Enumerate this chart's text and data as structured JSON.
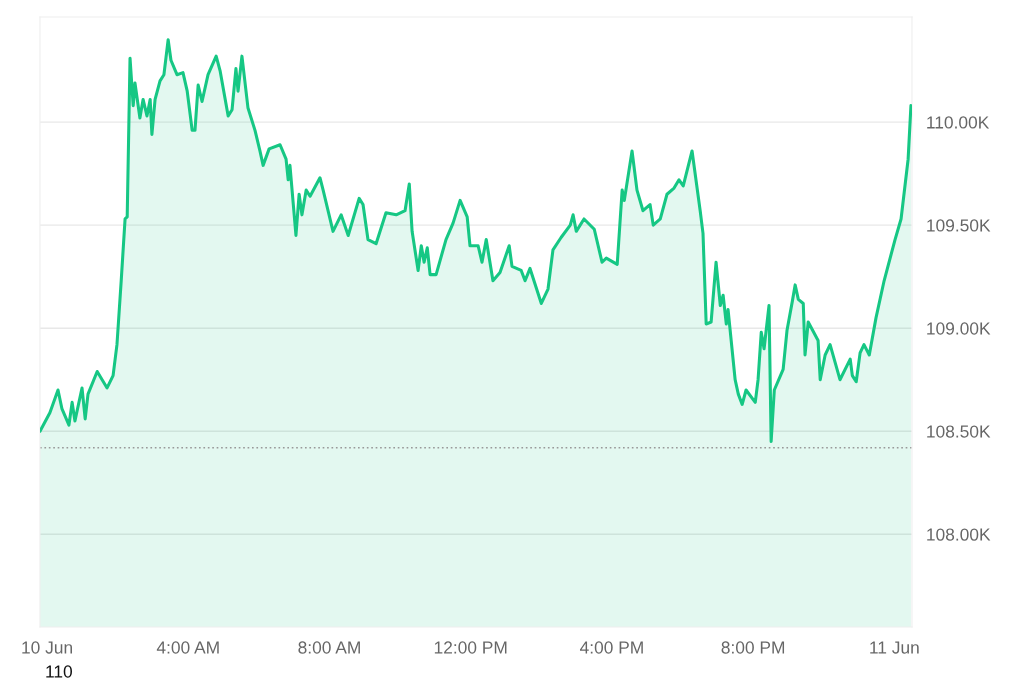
{
  "chart_data": {
    "type": "area",
    "x": [
      -0.2,
      0.08,
      0.31,
      0.42,
      0.62,
      0.71,
      0.79,
      0.99,
      1.08,
      1.16,
      1.42,
      1.7,
      1.87,
      1.98,
      2.1,
      2.21,
      2.27,
      2.35,
      2.44,
      2.49,
      2.63,
      2.72,
      2.83,
      2.92,
      2.97,
      3.06,
      3.2,
      3.31,
      3.43,
      3.51,
      3.68,
      3.85,
      3.97,
      4.11,
      4.19,
      4.28,
      4.39,
      4.56,
      4.79,
      4.9,
      5.13,
      5.24,
      5.35,
      5.41,
      5.52,
      5.69,
      5.89,
      6.03,
      6.12,
      6.29,
      6.6,
      6.77,
      6.83,
      6.88,
      7.05,
      7.14,
      7.22,
      7.34,
      7.45,
      7.73,
      7.82,
      8.1,
      8.33,
      8.53,
      8.84,
      8.95,
      9.09,
      9.32,
      9.6,
      9.89,
      10.14,
      10.26,
      10.34,
      10.51,
      10.6,
      10.68,
      10.77,
      10.85,
      11.02,
      11.3,
      11.5,
      11.7,
      11.9,
      11.98,
      12.21,
      12.32,
      12.44,
      12.63,
      12.83,
      13.09,
      13.17,
      13.43,
      13.54,
      13.68,
      14.0,
      14.19,
      14.33,
      14.56,
      14.82,
      14.9,
      14.99,
      15.21,
      15.5,
      15.72,
      15.84,
      16.15,
      16.29,
      16.35,
      16.57,
      16.71,
      16.88,
      17.08,
      17.17,
      17.37,
      17.56,
      17.76,
      17.9,
      18.02,
      18.27,
      18.5,
      18.58,
      18.67,
      18.81,
      18.95,
      19.07,
      19.15,
      19.24,
      19.29,
      19.49,
      19.58,
      19.69,
      19.8,
      20.06,
      20.14,
      20.23,
      20.31,
      20.45,
      20.51,
      20.6,
      20.85,
      20.96,
      21.11,
      21.19,
      21.28,
      21.42,
      21.47,
      21.56,
      21.84,
      21.9,
      22.04,
      22.18,
      22.46,
      22.75,
      22.81,
      22.92,
      23.03,
      23.14,
      23.29,
      23.48,
      23.71,
      24.02,
      24.19,
      24.39,
      24.47
    ],
    "series": [
      {
        "color": "#16c784",
        "values": [
          108.5,
          108.59,
          108.7,
          108.61,
          108.53,
          108.64,
          108.55,
          108.71,
          108.56,
          108.68,
          108.79,
          108.71,
          108.77,
          108.92,
          109.23,
          109.53,
          109.54,
          110.31,
          110.08,
          110.19,
          110.02,
          110.11,
          110.03,
          110.11,
          109.94,
          110.11,
          110.2,
          110.23,
          110.4,
          110.3,
          110.23,
          110.24,
          110.15,
          109.96,
          109.96,
          110.18,
          110.1,
          110.23,
          110.32,
          110.25,
          110.03,
          110.06,
          110.26,
          110.15,
          110.32,
          110.07,
          109.96,
          109.86,
          109.79,
          109.87,
          109.89,
          109.82,
          109.72,
          109.79,
          109.45,
          109.65,
          109.55,
          109.67,
          109.64,
          109.73,
          109.67,
          109.47,
          109.55,
          109.45,
          109.63,
          109.6,
          109.43,
          109.41,
          109.56,
          109.55,
          109.57,
          109.7,
          109.47,
          109.28,
          109.4,
          109.32,
          109.39,
          109.26,
          109.26,
          109.43,
          109.51,
          109.62,
          109.54,
          109.4,
          109.4,
          109.32,
          109.43,
          109.23,
          109.27,
          109.4,
          109.3,
          109.28,
          109.23,
          109.29,
          109.12,
          109.19,
          109.38,
          109.44,
          109.5,
          109.55,
          109.47,
          109.53,
          109.48,
          109.32,
          109.34,
          109.31,
          109.67,
          109.62,
          109.86,
          109.67,
          109.57,
          109.6,
          109.5,
          109.53,
          109.65,
          109.68,
          109.72,
          109.69,
          109.86,
          109.57,
          109.46,
          109.02,
          109.03,
          109.32,
          109.11,
          109.16,
          109.02,
          109.09,
          108.75,
          108.68,
          108.63,
          108.7,
          108.64,
          108.75,
          108.98,
          108.9,
          109.11,
          108.45,
          108.7,
          108.8,
          108.99,
          109.13,
          109.21,
          109.14,
          109.12,
          108.87,
          109.03,
          108.94,
          108.75,
          108.87,
          108.92,
          108.75,
          108.85,
          108.77,
          108.74,
          108.88,
          108.92,
          108.87,
          109.05,
          109.23,
          109.43,
          109.53,
          109.82,
          110.08
        ]
      }
    ],
    "xlim": [
      -0.2,
      24.5
    ],
    "xticks": [
      {
        "value": 0,
        "label": "10 Jun"
      },
      {
        "value": 4,
        "label": "4:00 AM"
      },
      {
        "value": 8,
        "label": "8:00 AM"
      },
      {
        "value": 12,
        "label": "12:00 PM"
      },
      {
        "value": 16,
        "label": "4:00 PM"
      },
      {
        "value": 20,
        "label": "8:00 PM"
      },
      {
        "value": 24,
        "label": "11 Jun"
      }
    ],
    "ylim": [
      107.55,
      110.51
    ],
    "yticks": [
      {
        "value": 108,
        "label": "108.00K"
      },
      {
        "value": 108.5,
        "label": "108.50K"
      },
      {
        "value": 109,
        "label": "109.00K"
      },
      {
        "value": 109.5,
        "label": "109.50K"
      },
      {
        "value": 110,
        "label": "110.00K"
      }
    ],
    "ref_lines": [
      {
        "axis": "y",
        "value": 108.42,
        "color": "#999999",
        "line_style": "dotted"
      }
    ],
    "grid": "y",
    "annotations": [
      "110"
    ]
  }
}
